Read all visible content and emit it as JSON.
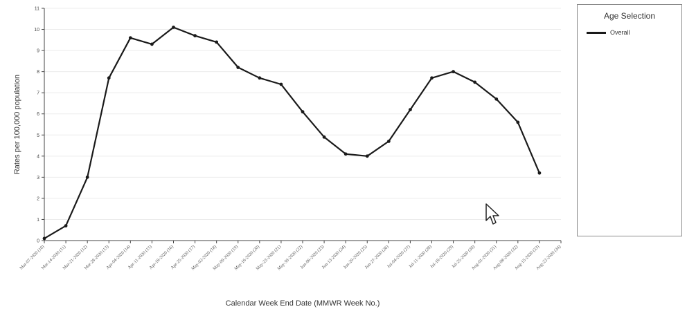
{
  "chart_data": {
    "type": "line",
    "title": "",
    "xlabel": "Calendar Week End Date (MMWR Week No.)",
    "ylabel": "Rates per 100,000 population",
    "ylim": [
      0,
      11
    ],
    "yticks": [
      0,
      1,
      2,
      3,
      4,
      5,
      6,
      7,
      8,
      9,
      10,
      11
    ],
    "grid": true,
    "legend_placement": "right",
    "categories": [
      "Mar-07-2020 (10)",
      "Mar-14-2020 (11)",
      "Mar-21-2020 (12)",
      "Mar-28-2020 (13)",
      "Apr-04-2020 (14)",
      "Apr-11-2020 (15)",
      "Apr-18-2020 (16)",
      "Apr-25-2020 (17)",
      "May-02-2020 (18)",
      "May-09-2020 (19)",
      "May-16-2020 (20)",
      "May-23-2020 (21)",
      "May-30-2020 (22)",
      "Jun-06-2020 (23)",
      "Jun-13-2020 (24)",
      "Jun-20-2020 (25)",
      "Jun-27-2020 (26)",
      "Jul-04-2020 (27)",
      "Jul-11-2020 (28)",
      "Jul-18-2020 (29)",
      "Jul-25-2020 (30)",
      "Aug-01-2020 (31)",
      "Aug-08-2020 (32)",
      "Aug-15-2020 (33)",
      "Aug-22-2020 (34)"
    ],
    "series": [
      {
        "name": "Overall",
        "color": "#1a1a1a",
        "values": [
          0.1,
          0.7,
          3.0,
          7.7,
          9.6,
          9.3,
          10.1,
          9.7,
          9.4,
          8.2,
          7.7,
          7.4,
          6.1,
          4.9,
          4.1,
          4.0,
          4.7,
          6.2,
          7.7,
          8.0,
          7.5,
          6.7,
          5.6,
          3.2,
          null
        ]
      }
    ]
  },
  "legend": {
    "title": "Age Selection",
    "items": [
      {
        "label": "Overall",
        "color": "#1a1a1a"
      }
    ]
  },
  "cursor_icon": "arrow-pointer"
}
